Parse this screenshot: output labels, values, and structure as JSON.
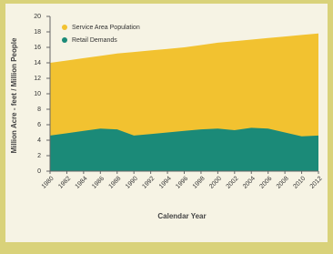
{
  "chart_data": {
    "type": "area",
    "x_label": "Calendar Year",
    "y_label": "Million Acre - feet / Million People",
    "x": [
      1980,
      1982,
      1984,
      1986,
      1988,
      1990,
      1992,
      1994,
      1996,
      1998,
      2000,
      2002,
      2004,
      2006,
      2008,
      2010,
      2012
    ],
    "series": [
      {
        "name": "Service Area Population",
        "color": "#f2c230",
        "values": [
          14.0,
          14.3,
          14.6,
          14.9,
          15.2,
          15.4,
          15.6,
          15.8,
          16.0,
          16.3,
          16.6,
          16.8,
          17.0,
          17.2,
          17.4,
          17.6,
          17.8
        ]
      },
      {
        "name": "Retail Demands",
        "color": "#1b8a78",
        "values": [
          4.6,
          4.9,
          5.2,
          5.5,
          5.4,
          4.6,
          4.8,
          5.0,
          5.2,
          5.4,
          5.5,
          5.3,
          5.6,
          5.5,
          5.0,
          4.5,
          4.6
        ]
      }
    ],
    "xlim": [
      1980,
      2012
    ],
    "xticks": [
      1980,
      1982,
      1984,
      1986,
      1988,
      1990,
      1992,
      1994,
      1996,
      1998,
      2000,
      2002,
      2004,
      2006,
      2008,
      2010,
      2012
    ],
    "ylim": [
      0,
      20
    ],
    "yticks": [
      0,
      2,
      4,
      6,
      8,
      10,
      12,
      14,
      16,
      18,
      20
    ],
    "legend": "top-left"
  }
}
